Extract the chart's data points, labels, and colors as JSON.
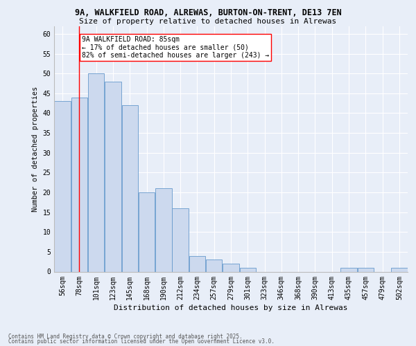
{
  "title1": "9A, WALKFIELD ROAD, ALREWAS, BURTON-ON-TRENT, DE13 7EN",
  "title2": "Size of property relative to detached houses in Alrewas",
  "xlabel": "Distribution of detached houses by size in Alrewas",
  "ylabel": "Number of detached properties",
  "categories": [
    "56sqm",
    "78sqm",
    "101sqm",
    "123sqm",
    "145sqm",
    "168sqm",
    "190sqm",
    "212sqm",
    "234sqm",
    "257sqm",
    "279sqm",
    "301sqm",
    "323sqm",
    "346sqm",
    "368sqm",
    "390sqm",
    "413sqm",
    "435sqm",
    "457sqm",
    "479sqm",
    "502sqm"
  ],
  "values": [
    43,
    44,
    50,
    48,
    42,
    20,
    21,
    16,
    4,
    3,
    2,
    1,
    0,
    0,
    0,
    0,
    0,
    1,
    1,
    0,
    1
  ],
  "bar_color": "#ccd9ee",
  "bar_edge_color": "#6699cc",
  "bar_width": 0.97,
  "red_line_x": 1.0,
  "annotation_title": "9A WALKFIELD ROAD: 85sqm",
  "annotation_line1": "← 17% of detached houses are smaller (50)",
  "annotation_line2": "82% of semi-detached houses are larger (243) →",
  "ylim": [
    0,
    62
  ],
  "yticks": [
    0,
    5,
    10,
    15,
    20,
    25,
    30,
    35,
    40,
    45,
    50,
    55,
    60
  ],
  "footer1": "Contains HM Land Registry data © Crown copyright and database right 2025.",
  "footer2": "Contains public sector information licensed under the Open Government Licence v3.0.",
  "bg_color": "#e8eef8",
  "plot_bg_color": "#e8eef8",
  "grid_color": "#ffffff",
  "title1_fontsize": 8.5,
  "title2_fontsize": 8.0,
  "tick_fontsize": 7.0,
  "ylabel_fontsize": 7.5,
  "xlabel_fontsize": 8.0,
  "ann_fontsize": 7.0,
  "footer_fontsize": 5.5
}
